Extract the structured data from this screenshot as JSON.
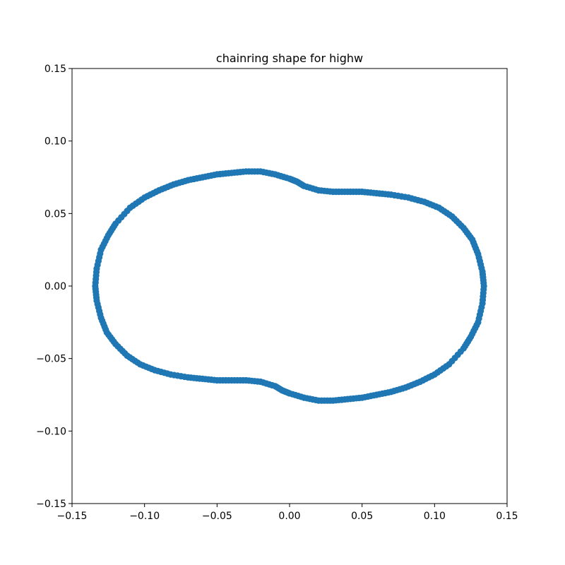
{
  "chart_data": {
    "type": "scatter",
    "title": "chainring shape for highw",
    "xlabel": "",
    "ylabel": "",
    "xlim": [
      -0.15,
      0.15
    ],
    "ylim": [
      -0.15,
      0.15
    ],
    "xticks": [
      -0.15,
      -0.1,
      -0.05,
      0.0,
      0.05,
      0.1,
      0.15
    ],
    "yticks": [
      -0.15,
      -0.1,
      -0.05,
      0.0,
      0.05,
      0.1,
      0.15
    ],
    "xtick_labels": [
      "−0.15",
      "−0.10",
      "−0.05",
      "0.00",
      "0.05",
      "0.10",
      "0.15"
    ],
    "ytick_labels": [
      "−0.15",
      "−0.10",
      "−0.05",
      "0.00",
      "0.05",
      "0.10",
      "0.15"
    ],
    "grid": false,
    "legend": "none",
    "marker_color": "#1f77b4",
    "series": [
      {
        "x": [
          -0.02,
          -0.03,
          -0.04,
          -0.05,
          -0.06,
          -0.07,
          -0.08,
          -0.09,
          -0.1,
          -0.11,
          -0.12,
          -0.125,
          -0.13,
          -0.133,
          -0.134,
          -0.133,
          -0.13,
          -0.126,
          -0.12,
          -0.112,
          -0.103,
          -0.093,
          -0.082,
          -0.07,
          -0.06,
          -0.05,
          -0.04,
          -0.03,
          -0.02,
          -0.01,
          -0.005,
          0.0,
          0.01,
          0.02,
          0.03,
          0.04,
          0.05,
          0.06,
          0.07,
          0.08,
          0.09,
          0.1,
          0.11,
          0.12,
          0.125,
          0.13,
          0.133,
          0.134,
          0.133,
          0.13,
          0.126,
          0.12,
          0.112,
          0.103,
          0.093,
          0.082,
          0.07,
          0.06,
          0.05,
          0.04,
          0.03,
          0.02,
          0.01,
          0.005,
          0.0,
          -0.01
        ],
        "y": [
          0.079,
          0.079,
          0.078,
          0.077,
          0.075,
          0.073,
          0.07,
          0.066,
          0.061,
          0.054,
          0.043,
          0.035,
          0.025,
          0.012,
          0.0,
          -0.01,
          -0.022,
          -0.032,
          -0.04,
          -0.048,
          -0.054,
          -0.058,
          -0.061,
          -0.063,
          -0.064,
          -0.065,
          -0.065,
          -0.065,
          -0.066,
          -0.069,
          -0.072,
          -0.074,
          -0.077,
          -0.079,
          -0.079,
          -0.078,
          -0.077,
          -0.075,
          -0.073,
          -0.07,
          -0.066,
          -0.061,
          -0.054,
          -0.043,
          -0.035,
          -0.025,
          -0.012,
          0.0,
          0.01,
          0.022,
          0.032,
          0.04,
          0.048,
          0.054,
          0.058,
          0.061,
          0.063,
          0.064,
          0.065,
          0.065,
          0.065,
          0.066,
          0.069,
          0.072,
          0.074,
          0.077
        ]
      }
    ]
  }
}
